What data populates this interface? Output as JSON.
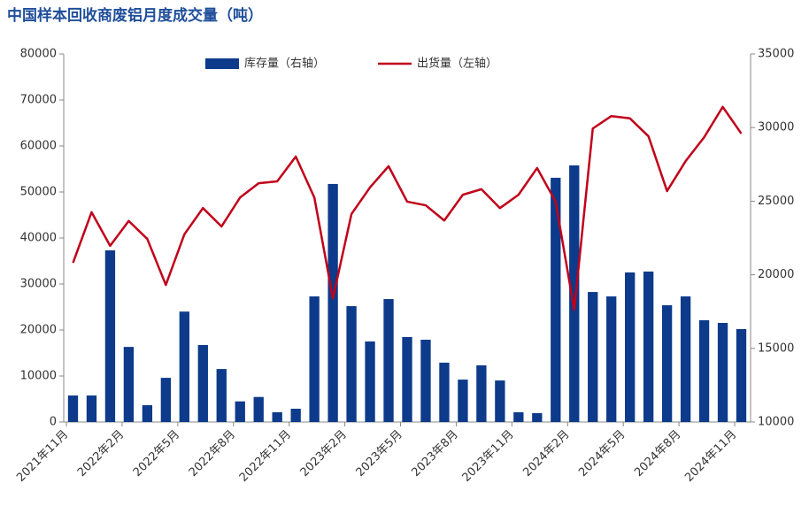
{
  "chart_data": {
    "type": "bar_line",
    "title": "中国样本回收商废铝月度成交量（吨）",
    "categories": [
      "2021年11月",
      null,
      null,
      "2022年2月",
      null,
      null,
      "2022年5月",
      null,
      null,
      "2022年8月",
      null,
      null,
      "2022年11月",
      null,
      null,
      "2023年2月",
      null,
      null,
      "2023年5月",
      null,
      null,
      "2023年8月",
      null,
      null,
      "2023年11月",
      null,
      null,
      "2024年2月",
      null,
      null,
      "2024年5月",
      null,
      null,
      "2024年8月",
      null,
      null,
      "2024年11月"
    ],
    "series": [
      {
        "name": "库存量（右轴）",
        "type": "bar",
        "axis": "y2",
        "color": "#0d3a8a",
        "values": [
          11800,
          11800,
          21660,
          15100,
          11140,
          13000,
          17500,
          15230,
          13600,
          11400,
          11700,
          10660,
          10900,
          18530,
          26170,
          17870,
          15470,
          18350,
          15770,
          15590,
          14030,
          12880,
          13850,
          12820,
          10660,
          10600,
          26590,
          27430,
          18830,
          18530,
          20160,
          20220,
          17930,
          18530,
          16910,
          16730,
          16310
        ]
      },
      {
        "name": "出货量（左轴）",
        "type": "line",
        "color": "#c0001a",
        "values": [
          34600,
          45600,
          38300,
          43700,
          39800,
          29800,
          40800,
          46500,
          42500,
          48800,
          51900,
          52300,
          57700,
          48800,
          26900,
          45200,
          51000,
          55600,
          47900,
          47100,
          43800,
          49400,
          50600,
          46500,
          49400,
          55200,
          47900,
          24400,
          63800,
          66500,
          66000,
          62100,
          50200,
          56700,
          61900,
          68500,
          62700
        ]
      }
    ],
    "ylim": [
      0,
      80000
    ],
    "yticks": [
      0,
      10000,
      20000,
      30000,
      40000,
      50000,
      60000,
      70000,
      80000
    ],
    "y2lim": [
      10000,
      35000
    ],
    "y2ticks": [
      10000,
      15000,
      20000,
      25000,
      30000,
      35000
    ],
    "grid": false
  }
}
